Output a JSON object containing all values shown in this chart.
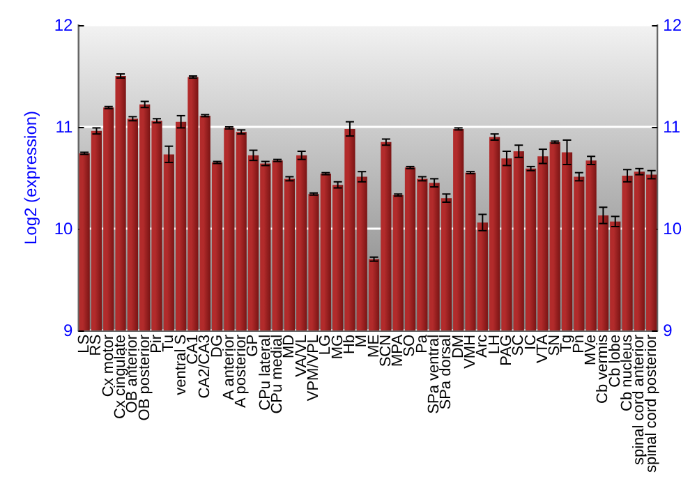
{
  "chart_data": {
    "type": "bar",
    "ylabel": "Log2 (expression)",
    "categories": [
      "LS",
      "RS",
      "Cx motor",
      "Cx cingulate",
      "OB anterior",
      "OB posterior",
      "Pir",
      "Tu",
      "ventral S",
      "CA1",
      "CA2/CA3",
      "DG",
      "A anterior",
      "A posterior",
      "GP",
      "CPu lateral",
      "CPu medial",
      "MD",
      "VA/VL",
      "VPM/VPL",
      "LG",
      "MG",
      "Hb",
      "M",
      "ME",
      "SCN",
      "MPA",
      "SO",
      "Pa",
      "SPa ventral",
      "SPa dorsal",
      "DM",
      "VMH",
      "Arc",
      "LH",
      "PAG",
      "SC",
      "IC",
      "VTA",
      "SN",
      "Tg",
      "Pn",
      "MVe",
      "Cb vermis",
      "Cb lobe",
      "Cb nucleus",
      "spinal cord anterior",
      "spinal cord posterior"
    ],
    "values": [
      10.74,
      10.96,
      11.19,
      11.5,
      11.08,
      11.22,
      11.06,
      10.73,
      11.05,
      11.49,
      11.11,
      10.65,
      10.99,
      10.95,
      10.72,
      10.64,
      10.67,
      10.49,
      10.72,
      10.34,
      10.54,
      10.43,
      10.98,
      10.51,
      9.7,
      10.85,
      10.33,
      10.6,
      10.49,
      10.45,
      10.3,
      10.98,
      10.55,
      10.06,
      10.9,
      10.69,
      10.76,
      10.59,
      10.71,
      10.85,
      10.75,
      10.51,
      10.67,
      10.13,
      10.07,
      10.52,
      10.56,
      10.53
    ],
    "errors": [
      0.01,
      0.03,
      0.01,
      0.02,
      0.02,
      0.03,
      0.02,
      0.08,
      0.06,
      0.01,
      0.01,
      0.01,
      0.01,
      0.02,
      0.05,
      0.02,
      0.01,
      0.02,
      0.04,
      0.01,
      0.01,
      0.03,
      0.07,
      0.05,
      0.02,
      0.03,
      0.01,
      0.01,
      0.02,
      0.04,
      0.04,
      0.01,
      0.01,
      0.08,
      0.03,
      0.07,
      0.06,
      0.02,
      0.07,
      0.01,
      0.12,
      0.04,
      0.04,
      0.08,
      0.05,
      0.06,
      0.03,
      0.04
    ],
    "color": "#b22b2b",
    "ylim": [
      9,
      12
    ],
    "yticks": [
      9,
      10,
      11,
      12
    ],
    "y2lim": [
      9,
      12
    ],
    "y2ticks": [
      9,
      10,
      11,
      12
    ],
    "grid": "y"
  }
}
